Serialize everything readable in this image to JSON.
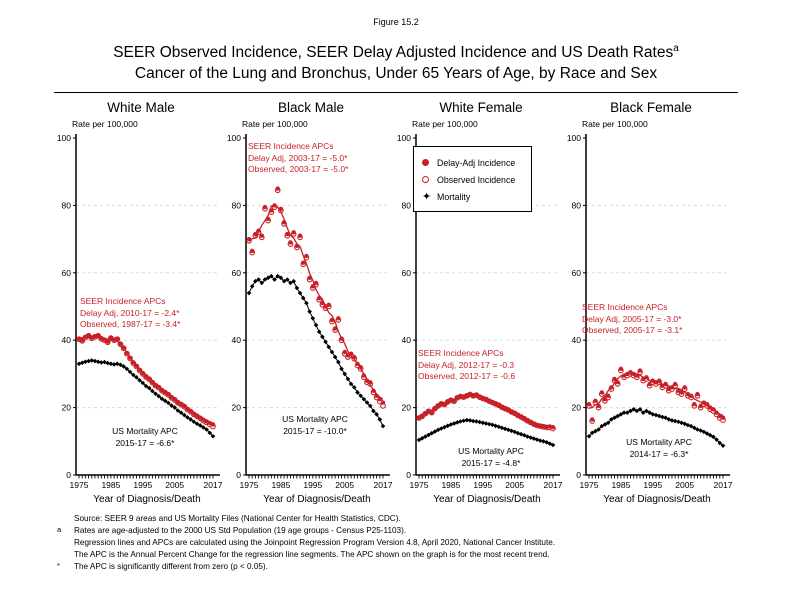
{
  "header": {
    "figure_number": "Figure 15.2",
    "title_line1": "SEER Observed Incidence, SEER Delay Adjusted Incidence and US Death Rates",
    "title_superscript": "a",
    "title_line2": "Cancer of the Lung and Bronchus, Under 65 Years of Age, by Race and Sex"
  },
  "labels": {
    "rate_axis": "Rate per 100,000",
    "x_axis": "Year of Diagnosis/Death"
  },
  "legend": {
    "position": "top-left of White Female panel",
    "items": [
      {
        "label": "Delay-Adj Incidence",
        "marker": "filled-red-circle"
      },
      {
        "label": "Observed Incidence",
        "marker": "open-red-circle"
      },
      {
        "label": "Mortality",
        "marker": "black-four-point-star"
      }
    ]
  },
  "colors": {
    "incidence": "#C62128",
    "mortality": "#000000",
    "grid": "#DCDCDC"
  },
  "chart_data": [
    {
      "type": "line",
      "title": "White Male",
      "ylabel": "Rate per 100,000",
      "xlabel": "Year of Diagnosis/Death",
      "x_range": [
        1975,
        2017
      ],
      "x_step": 1,
      "xticks": [
        1975,
        1985,
        1995,
        2005,
        2017
      ],
      "ylim": [
        0,
        100
      ],
      "yticks": [
        0,
        20,
        40,
        60,
        80,
        100
      ],
      "grid": "horizontal-dashed",
      "annotations": {
        "incidence": [
          "SEER Incidence APCs",
          "Delay Adj, 2010-17 = -2.4*",
          "Observed, 1987-17 = -3.4*"
        ],
        "mortality": [
          "US Mortality APC",
          "2015-17 = -6.6*"
        ]
      },
      "series": [
        {
          "name": "Delay-Adj Incidence",
          "values": [
            40.5,
            40.0,
            41.0,
            41.5,
            40.8,
            41.2,
            41.5,
            40.6,
            40.2,
            39.6,
            40.8,
            40.2,
            40.5,
            39.0,
            37.8,
            36.2,
            34.8,
            33.4,
            32.4,
            31.2,
            30.2,
            29.3,
            28.6,
            27.6,
            26.7,
            26.1,
            25.2,
            24.6,
            24.0,
            23.1,
            22.5,
            21.6,
            21.1,
            20.5,
            19.6,
            19.0,
            18.2,
            17.6,
            17.0,
            16.4,
            15.9,
            15.4,
            15.0
          ]
        },
        {
          "name": "Observed Incidence",
          "values": [
            40.3,
            39.8,
            40.8,
            41.3,
            40.6,
            41.0,
            41.3,
            40.4,
            40.0,
            39.4,
            40.6,
            40.0,
            40.3,
            38.8,
            37.6,
            36.0,
            34.6,
            33.2,
            32.2,
            31.0,
            30.0,
            29.1,
            28.4,
            27.4,
            26.5,
            25.9,
            25.0,
            24.4,
            23.8,
            22.9,
            22.3,
            21.4,
            20.9,
            20.3,
            19.4,
            18.8,
            18.0,
            17.4,
            16.8,
            16.1,
            15.6,
            15.0,
            14.4
          ]
        },
        {
          "name": "Mortality",
          "values": [
            33.0,
            33.3,
            33.6,
            33.8,
            34.0,
            33.8,
            33.6,
            33.4,
            33.5,
            33.2,
            33.0,
            32.8,
            33.0,
            32.7,
            32.2,
            31.5,
            30.6,
            29.7,
            29.0,
            28.1,
            27.3,
            26.4,
            25.8,
            24.9,
            24.1,
            23.4,
            22.6,
            22.0,
            21.4,
            20.6,
            20.0,
            19.1,
            18.5,
            17.8,
            17.1,
            16.5,
            15.8,
            15.2,
            14.7,
            14.1,
            13.5,
            12.5,
            11.5
          ]
        }
      ]
    },
    {
      "type": "line",
      "title": "Black Male",
      "ylabel": "Rate per 100,000",
      "xlabel": "Year of Diagnosis/Death",
      "x_range": [
        1975,
        2017
      ],
      "x_step": 1,
      "xticks": [
        1975,
        1985,
        1995,
        2005,
        2017
      ],
      "ylim": [
        0,
        100
      ],
      "yticks": [
        0,
        20,
        40,
        60,
        80,
        100
      ],
      "grid": "horizontal-dashed",
      "annotations": {
        "incidence": [
          "SEER Incidence APCs",
          "Delay Adj, 2003-17 = -5.0*",
          "Observed, 2003-17 = -5.0*"
        ],
        "mortality": [
          "US Mortality APC",
          "2015-17 = -10.0*"
        ]
      },
      "series": [
        {
          "name": "Delay-Adj Incidence",
          "values": [
            70.0,
            66.5,
            71.5,
            72.5,
            71.0,
            79.5,
            76.0,
            78.5,
            80.0,
            85.0,
            79.0,
            75.0,
            71.5,
            69.0,
            72.0,
            68.0,
            71.0,
            63.0,
            65.0,
            58.5,
            56.0,
            57.0,
            52.5,
            51.0,
            50.0,
            50.5,
            46.0,
            43.5,
            46.5,
            40.5,
            36.5,
            35.5,
            36.0,
            35.0,
            33.0,
            32.0,
            29.5,
            28.0,
            27.5,
            25.0,
            23.5,
            22.5,
            21.5
          ]
        },
        {
          "name": "Observed Incidence",
          "values": [
            69.5,
            66.0,
            71.0,
            72.0,
            70.5,
            79.0,
            75.5,
            78.0,
            79.5,
            84.5,
            78.5,
            74.5,
            71.0,
            68.5,
            71.5,
            67.5,
            70.5,
            62.5,
            64.5,
            58.0,
            55.5,
            56.5,
            52.0,
            50.5,
            49.5,
            50.0,
            45.5,
            43.0,
            46.0,
            40.0,
            36.0,
            35.0,
            35.5,
            34.5,
            32.5,
            31.5,
            29.0,
            27.5,
            27.0,
            24.5,
            23.0,
            21.8,
            20.5
          ]
        },
        {
          "name": "Mortality",
          "values": [
            54.0,
            56.0,
            57.5,
            58.0,
            57.0,
            58.0,
            58.5,
            59.0,
            58.0,
            59.0,
            58.5,
            57.5,
            58.0,
            57.0,
            57.5,
            55.5,
            54.0,
            52.5,
            51.0,
            48.5,
            46.5,
            44.5,
            42.5,
            41.0,
            39.5,
            38.0,
            36.5,
            35.0,
            33.5,
            31.5,
            30.0,
            28.5,
            27.0,
            26.0,
            24.5,
            23.5,
            22.5,
            21.5,
            20.5,
            19.0,
            18.0,
            16.5,
            14.5
          ]
        }
      ]
    },
    {
      "type": "line",
      "title": "White Female",
      "ylabel": "Rate per 100,000",
      "xlabel": "Year of Diagnosis/Death",
      "x_range": [
        1975,
        2017
      ],
      "x_step": 1,
      "xticks": [
        1975,
        1985,
        1995,
        2005,
        2017
      ],
      "ylim": [
        0,
        100
      ],
      "yticks": [
        0,
        20,
        40,
        60,
        80,
        100
      ],
      "grid": "horizontal-dashed",
      "annotations": {
        "incidence": [
          "SEER Incidence APCs",
          "Delay Adj, 2012-17 = -0.3",
          "Observed, 2012-17 = -0.6"
        ],
        "mortality": [
          "US Mortality APC",
          "2015-17 = -4.8*"
        ]
      },
      "series": [
        {
          "name": "Delay-Adj Incidence",
          "values": [
            17.0,
            17.5,
            18.3,
            19.0,
            18.6,
            19.8,
            20.6,
            21.2,
            21.0,
            21.8,
            22.3,
            22.0,
            23.0,
            23.4,
            23.2,
            23.6,
            24.0,
            23.6,
            23.8,
            23.2,
            22.8,
            22.5,
            22.0,
            21.6,
            21.2,
            20.8,
            20.2,
            19.8,
            19.4,
            18.8,
            18.4,
            17.8,
            17.3,
            16.8,
            16.2,
            15.7,
            15.2,
            14.8,
            14.6,
            14.5,
            14.3,
            14.4,
            14.2
          ]
        },
        {
          "name": "Observed Incidence",
          "values": [
            16.9,
            17.4,
            18.2,
            18.9,
            18.5,
            19.7,
            20.5,
            21.1,
            20.9,
            21.7,
            22.2,
            21.9,
            22.9,
            23.3,
            23.1,
            23.5,
            23.9,
            23.5,
            23.7,
            23.1,
            22.7,
            22.4,
            21.9,
            21.5,
            21.1,
            20.7,
            20.1,
            19.7,
            19.3,
            18.7,
            18.3,
            17.7,
            17.2,
            16.7,
            16.1,
            15.6,
            15.1,
            14.7,
            14.5,
            14.3,
            14.1,
            14.1,
            13.8
          ]
        },
        {
          "name": "Mortality",
          "values": [
            10.4,
            10.9,
            11.4,
            11.9,
            12.4,
            12.9,
            13.4,
            13.8,
            14.2,
            14.6,
            15.0,
            15.3,
            15.6,
            15.9,
            16.1,
            16.3,
            16.2,
            16.0,
            15.9,
            15.7,
            15.5,
            15.3,
            15.1,
            14.9,
            14.6,
            14.3,
            14.0,
            13.7,
            13.4,
            13.1,
            12.8,
            12.4,
            12.1,
            11.8,
            11.4,
            11.1,
            10.8,
            10.5,
            10.2,
            10.0,
            9.7,
            9.3,
            8.9
          ]
        }
      ]
    },
    {
      "type": "line",
      "title": "Black Female",
      "ylabel": "Rate per 100,000",
      "xlabel": "Year of Diagnosis/Death",
      "x_range": [
        1975,
        2017
      ],
      "x_step": 1,
      "xticks": [
        1975,
        1985,
        1995,
        2005,
        2017
      ],
      "ylim": [
        0,
        100
      ],
      "yticks": [
        0,
        20,
        40,
        60,
        80,
        100
      ],
      "grid": "horizontal-dashed",
      "annotations": {
        "incidence": [
          "SEER Incidence APCs",
          "Delay Adj, 2005-17 = -3.0*",
          "Observed, 2005-17 = -3.1*"
        ],
        "mortality": [
          "US Mortality APC",
          "2014-17 = -6.3*"
        ]
      },
      "series": [
        {
          "name": "Delay-Adj Incidence",
          "values": [
            21.0,
            16.5,
            22.0,
            20.5,
            24.5,
            22.5,
            23.5,
            26.0,
            28.5,
            27.5,
            31.5,
            29.5,
            30.0,
            30.5,
            30.0,
            29.5,
            31.0,
            28.5,
            29.0,
            27.0,
            28.0,
            27.5,
            28.0,
            26.5,
            27.0,
            25.5,
            26.0,
            27.0,
            25.0,
            24.5,
            26.0,
            24.0,
            23.5,
            21.0,
            24.0,
            20.5,
            21.5,
            21.0,
            20.0,
            19.5,
            18.5,
            17.5,
            17.0
          ]
        },
        {
          "name": "Observed Incidence",
          "values": [
            20.5,
            16.0,
            21.5,
            20.0,
            24.0,
            22.0,
            23.0,
            25.5,
            28.0,
            27.0,
            31.0,
            29.0,
            29.5,
            30.0,
            29.5,
            29.0,
            30.5,
            28.0,
            28.5,
            26.5,
            27.5,
            27.0,
            27.5,
            26.0,
            26.5,
            25.0,
            25.5,
            26.5,
            24.5,
            24.0,
            25.5,
            23.5,
            23.0,
            20.5,
            23.5,
            20.0,
            21.0,
            20.5,
            19.5,
            19.0,
            18.0,
            16.9,
            16.3
          ]
        },
        {
          "name": "Mortality",
          "values": [
            11.5,
            12.5,
            13.0,
            13.5,
            14.5,
            15.0,
            15.5,
            16.5,
            17.0,
            17.5,
            18.0,
            18.5,
            18.5,
            19.0,
            19.5,
            19.0,
            19.5,
            18.5,
            19.0,
            18.5,
            18.0,
            17.8,
            17.5,
            17.2,
            17.0,
            16.5,
            16.2,
            16.0,
            15.8,
            15.5,
            15.2,
            14.8,
            14.5,
            14.0,
            13.5,
            13.2,
            12.8,
            12.3,
            11.8,
            11.3,
            10.5,
            9.5,
            8.7
          ]
        }
      ]
    }
  ],
  "footnotes": [
    {
      "marker": "",
      "text": "Source: SEER 9 areas and US Mortality Files (National Center for Health Statistics, CDC)."
    },
    {
      "marker": "a",
      "text": "Rates are age-adjusted to the 2000 US Std Population (19 age groups - Census P25-1103)."
    },
    {
      "marker": "",
      "text": "Regression lines and APCs are calculated using the Joinpoint Regression Program Version 4.8, April 2020, National Cancer Institute."
    },
    {
      "marker": "",
      "text": "The APC is the Annual Percent Change for the regression line segments. The APC shown on the graph is for the most recent trend."
    },
    {
      "marker": "*",
      "text": "The APC is significantly different from zero (p < 0.05)."
    }
  ]
}
